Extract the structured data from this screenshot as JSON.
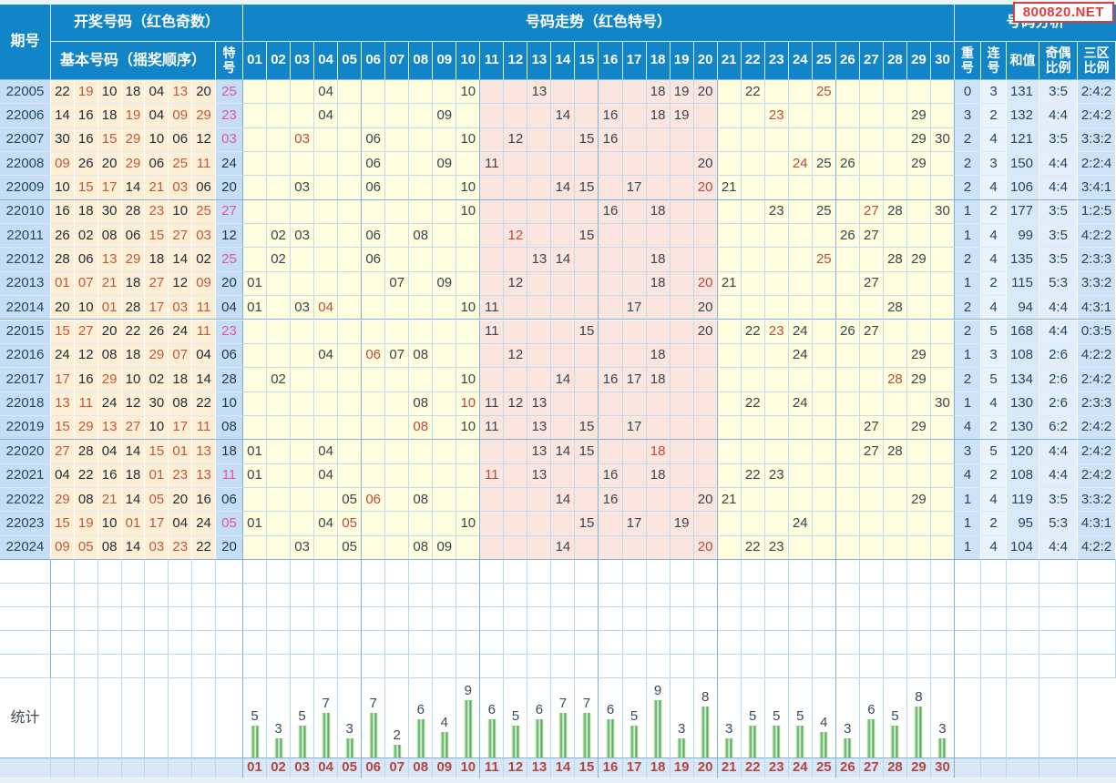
{
  "watermark": "800820.NET",
  "header": {
    "period": "期号",
    "draw_numbers_group": "开奖号码（红色奇数）",
    "basic_numbers": "基本号码（摇奖顺序）",
    "special": "特\n号",
    "trend_group": "号码走势（红色特号）",
    "analysis_group": "号码分析",
    "repeat": "重\n号",
    "consecutive": "连\n号",
    "sum": "和值",
    "odd_even_ratio": "奇偶\n比例",
    "zone_ratio": "三区\n比例"
  },
  "trend_columns": [
    "01",
    "02",
    "03",
    "04",
    "05",
    "06",
    "07",
    "08",
    "09",
    "10",
    "11",
    "12",
    "13",
    "14",
    "15",
    "16",
    "17",
    "18",
    "19",
    "20",
    "21",
    "22",
    "23",
    "24",
    "25",
    "26",
    "27",
    "28",
    "29",
    "30"
  ],
  "rows": [
    {
      "period": "22005",
      "basic": [
        "22",
        "19",
        "10",
        "18",
        "04",
        "13",
        "20"
      ],
      "special": "25",
      "repeat": "0",
      "consecutive": "3",
      "sum": "131",
      "odd_even": "3:5",
      "zone": "2:4:2"
    },
    {
      "period": "22006",
      "basic": [
        "14",
        "16",
        "18",
        "19",
        "04",
        "09",
        "29"
      ],
      "special": "23",
      "repeat": "3",
      "consecutive": "2",
      "sum": "132",
      "odd_even": "4:4",
      "zone": "2:4:2"
    },
    {
      "period": "22007",
      "basic": [
        "30",
        "16",
        "15",
        "29",
        "10",
        "06",
        "12"
      ],
      "special": "03",
      "repeat": "2",
      "consecutive": "4",
      "sum": "121",
      "odd_even": "3:5",
      "zone": "3:3:2"
    },
    {
      "period": "22008",
      "basic": [
        "09",
        "26",
        "20",
        "29",
        "06",
        "25",
        "11"
      ],
      "special": "24",
      "repeat": "2",
      "consecutive": "3",
      "sum": "150",
      "odd_even": "4:4",
      "zone": "2:2:4"
    },
    {
      "period": "22009",
      "basic": [
        "10",
        "15",
        "17",
        "14",
        "21",
        "03",
        "06"
      ],
      "special": "20",
      "repeat": "2",
      "consecutive": "4",
      "sum": "106",
      "odd_even": "4:4",
      "zone": "3:4:1"
    },
    {
      "period": "22010",
      "basic": [
        "16",
        "18",
        "30",
        "28",
        "23",
        "10",
        "25"
      ],
      "special": "27",
      "repeat": "1",
      "consecutive": "2",
      "sum": "177",
      "odd_even": "3:5",
      "zone": "1:2:5"
    },
    {
      "period": "22011",
      "basic": [
        "26",
        "02",
        "08",
        "06",
        "15",
        "27",
        "03"
      ],
      "special": "12",
      "repeat": "1",
      "consecutive": "4",
      "sum": "99",
      "odd_even": "3:5",
      "zone": "4:2:2"
    },
    {
      "period": "22012",
      "basic": [
        "28",
        "06",
        "13",
        "29",
        "18",
        "14",
        "02"
      ],
      "special": "25",
      "repeat": "2",
      "consecutive": "4",
      "sum": "135",
      "odd_even": "3:5",
      "zone": "2:3:3"
    },
    {
      "period": "22013",
      "basic": [
        "01",
        "07",
        "21",
        "18",
        "27",
        "12",
        "09"
      ],
      "special": "20",
      "repeat": "1",
      "consecutive": "2",
      "sum": "115",
      "odd_even": "5:3",
      "zone": "3:3:2"
    },
    {
      "period": "22014",
      "basic": [
        "20",
        "10",
        "01",
        "28",
        "17",
        "03",
        "11"
      ],
      "special": "04",
      "repeat": "2",
      "consecutive": "4",
      "sum": "94",
      "odd_even": "4:4",
      "zone": "4:3:1"
    },
    {
      "period": "22015",
      "basic": [
        "15",
        "27",
        "20",
        "22",
        "26",
        "24",
        "11"
      ],
      "special": "23",
      "repeat": "2",
      "consecutive": "5",
      "sum": "168",
      "odd_even": "4:4",
      "zone": "0:3:5"
    },
    {
      "period": "22016",
      "basic": [
        "24",
        "12",
        "08",
        "18",
        "29",
        "07",
        "04"
      ],
      "special": "06",
      "repeat": "1",
      "consecutive": "3",
      "sum": "108",
      "odd_even": "2:6",
      "zone": "4:2:2"
    },
    {
      "period": "22017",
      "basic": [
        "17",
        "16",
        "29",
        "10",
        "02",
        "18",
        "14"
      ],
      "special": "28",
      "repeat": "2",
      "consecutive": "5",
      "sum": "134",
      "odd_even": "2:6",
      "zone": "2:4:2"
    },
    {
      "period": "22018",
      "basic": [
        "13",
        "11",
        "24",
        "12",
        "30",
        "08",
        "22"
      ],
      "special": "10",
      "repeat": "1",
      "consecutive": "4",
      "sum": "130",
      "odd_even": "2:6",
      "zone": "2:3:3"
    },
    {
      "period": "22019",
      "basic": [
        "15",
        "29",
        "13",
        "27",
        "10",
        "17",
        "11"
      ],
      "special": "08",
      "repeat": "4",
      "consecutive": "2",
      "sum": "130",
      "odd_even": "6:2",
      "zone": "2:4:2"
    },
    {
      "period": "22020",
      "basic": [
        "27",
        "28",
        "04",
        "14",
        "15",
        "01",
        "13"
      ],
      "special": "18",
      "repeat": "3",
      "consecutive": "5",
      "sum": "120",
      "odd_even": "4:4",
      "zone": "2:4:2"
    },
    {
      "period": "22021",
      "basic": [
        "04",
        "22",
        "16",
        "18",
        "01",
        "23",
        "13"
      ],
      "special": "11",
      "repeat": "4",
      "consecutive": "2",
      "sum": "108",
      "odd_even": "4:4",
      "zone": "2:4:2"
    },
    {
      "period": "22022",
      "basic": [
        "29",
        "08",
        "21",
        "14",
        "05",
        "20",
        "16"
      ],
      "special": "06",
      "repeat": "1",
      "consecutive": "4",
      "sum": "119",
      "odd_even": "3:5",
      "zone": "3:3:2"
    },
    {
      "period": "22023",
      "basic": [
        "15",
        "19",
        "10",
        "01",
        "17",
        "04",
        "24"
      ],
      "special": "05",
      "repeat": "1",
      "consecutive": "2",
      "sum": "95",
      "odd_even": "5:3",
      "zone": "4:3:1"
    },
    {
      "period": "22024",
      "basic": [
        "09",
        "05",
        "08",
        "14",
        "03",
        "23",
        "22"
      ],
      "special": "20",
      "repeat": "1",
      "consecutive": "4",
      "sum": "104",
      "odd_even": "4:4",
      "zone": "4:2:2"
    }
  ],
  "stats": {
    "label": "统计",
    "counts": [
      5,
      3,
      5,
      7,
      3,
      7,
      2,
      6,
      4,
      9,
      6,
      5,
      6,
      7,
      7,
      6,
      5,
      9,
      3,
      8,
      3,
      5,
      5,
      5,
      4,
      3,
      6,
      5,
      8,
      3
    ]
  },
  "footer_numbers": [
    "01",
    "02",
    "03",
    "04",
    "05",
    "06",
    "07",
    "08",
    "09",
    "10",
    "11",
    "12",
    "13",
    "14",
    "15",
    "16",
    "17",
    "18",
    "19",
    "20",
    "21",
    "22",
    "23",
    "24",
    "25",
    "26",
    "27",
    "28",
    "29",
    "30"
  ],
  "chart_data": {
    "type": "bar",
    "title": "统计",
    "categories": [
      "01",
      "02",
      "03",
      "04",
      "05",
      "06",
      "07",
      "08",
      "09",
      "10",
      "11",
      "12",
      "13",
      "14",
      "15",
      "16",
      "17",
      "18",
      "19",
      "20",
      "21",
      "22",
      "23",
      "24",
      "25",
      "26",
      "27",
      "28",
      "29",
      "30"
    ],
    "values": [
      5,
      3,
      5,
      7,
      3,
      7,
      2,
      6,
      4,
      9,
      6,
      5,
      6,
      7,
      7,
      6,
      5,
      9,
      3,
      8,
      3,
      5,
      5,
      5,
      4,
      3,
      6,
      5,
      8,
      3
    ],
    "xlabel": "",
    "ylabel": "",
    "ylim": [
      0,
      9
    ],
    "bar_color": "#4aa34f",
    "grid": true,
    "legend_position": "none"
  },
  "colors": {
    "header_bg": "#1285c8",
    "header_text": "#ffffff",
    "period_bg": "#c5def5",
    "basic_bg": "#fdeed6",
    "special_bg": "#c5def5",
    "zone1_bg": "#ffffdf",
    "zone2_bg": "#fbe5df",
    "zone3_bg": "#ffffdf",
    "analysis_bgs": [
      "#cfe3f6",
      "#e9f3fc",
      "#d8e9f8",
      "#e2effb",
      "#cfe3f6"
    ],
    "odd_basic_text": "#c2583a",
    "even_basic_text": "#222c36",
    "special_odd_text": "#e2569d",
    "special_even_text": "#20384f",
    "trend_text": "#39444f",
    "trend_special_text": "#c3473f",
    "period_text": "#26455e",
    "analysis_text": "#26455e",
    "footer_bg": "#d9e8f7",
    "footer_text": "#b5443f",
    "line_light": "#c3dced",
    "line_dark": "#7fb0da",
    "line_row": "#dcebf7",
    "empty_line": "#b9d7ee",
    "top_strip": "#eaf4fc",
    "bottom_strip": "#e4eef9",
    "watermark_red": "#e23b3b",
    "bar_green": "#4aa34f"
  }
}
